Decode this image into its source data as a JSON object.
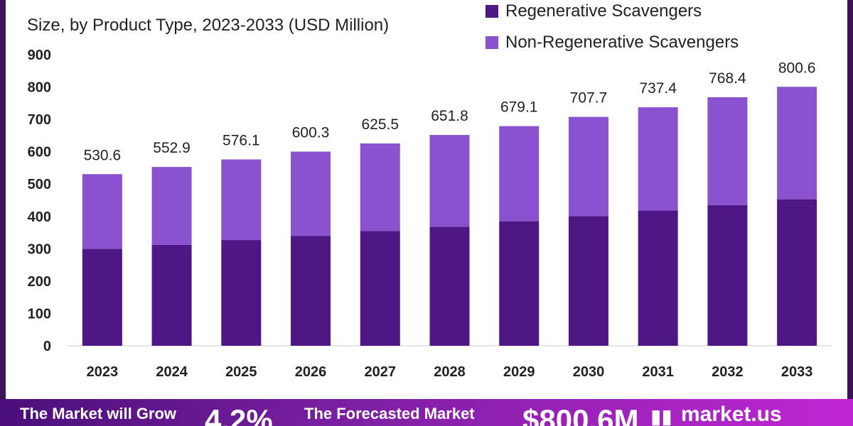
{
  "subtitle": "Size, by Product Type, 2023-2033 (USD Million)",
  "colors": {
    "regenerative": "#4f1786",
    "non_regenerative": "#8a52cf",
    "frame": "#3b1258"
  },
  "chart_data": {
    "type": "bar",
    "stacked": true,
    "subtitle": "Size, by Product Type, 2023-2033 (USD Million)",
    "categories": [
      "2023",
      "2024",
      "2025",
      "2026",
      "2027",
      "2028",
      "2029",
      "2030",
      "2031",
      "2032",
      "2033"
    ],
    "series": [
      {
        "name": "Regenerative Scavengers",
        "values": [
          300,
          312,
          327,
          340,
          355,
          368,
          385,
          401,
          418,
          435,
          453
        ]
      },
      {
        "name": "Non-Regenerative Scavengers",
        "values": [
          230.6,
          240.9,
          249.1,
          260.3,
          270.5,
          283.8,
          294.1,
          306.7,
          319.4,
          333.4,
          347.6
        ]
      }
    ],
    "totals": [
      "530.6",
      "552.9",
      "576.1",
      "600.3",
      "625.5",
      "651.8",
      "679.1",
      "707.7",
      "737.4",
      "768.4",
      "800.6"
    ],
    "yticks": [
      0,
      100,
      200,
      300,
      400,
      500,
      600,
      700,
      800,
      900
    ],
    "ylim": [
      0,
      900
    ],
    "grid": false,
    "legend_position": "top-right"
  },
  "footer": {
    "grow_text": "The Market will Grow",
    "cagr_text": "4.2%",
    "forecast_text": "The Forecasted Market",
    "value_text": "$800.6M",
    "logo_text": "market.us"
  }
}
